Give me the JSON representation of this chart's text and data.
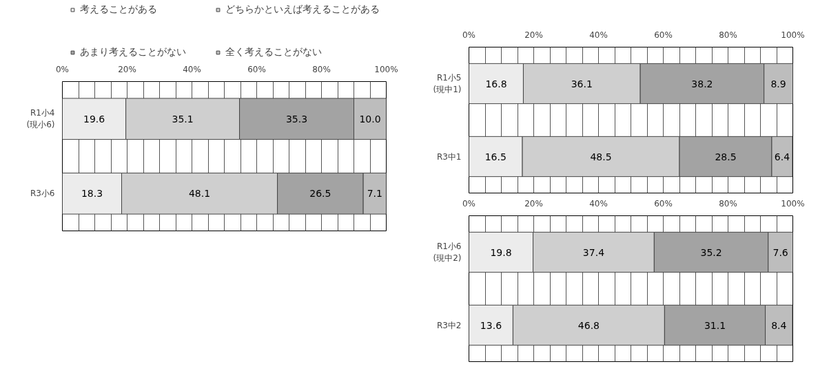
{
  "chart_data": [
    {
      "type": "bar",
      "orientation": "horizontal",
      "stacked": true,
      "data_labels": true,
      "grid": "x",
      "legend": "top",
      "categories": [
        "R1小4\n(現小6)",
        "R3小6"
      ],
      "xlim": [
        0,
        100
      ],
      "xticks": [
        {
          "value": 0,
          "label": "0%"
        },
        {
          "value": 5,
          "label": null
        },
        {
          "value": 10,
          "label": null
        },
        {
          "value": 15,
          "label": null
        },
        {
          "value": 20,
          "label": "20%"
        },
        {
          "value": 25,
          "label": null
        },
        {
          "value": 30,
          "label": null
        },
        {
          "value": 35,
          "label": null
        },
        {
          "value": 40,
          "label": "40%"
        },
        {
          "value": 45,
          "label": null
        },
        {
          "value": 50,
          "label": null
        },
        {
          "value": 55,
          "label": null
        },
        {
          "value": 60,
          "label": "60%"
        },
        {
          "value": 65,
          "label": null
        },
        {
          "value": 70,
          "label": null
        },
        {
          "value": 75,
          "label": null
        },
        {
          "value": 80,
          "label": "80%"
        },
        {
          "value": 85,
          "label": null
        },
        {
          "value": 90,
          "label": null
        },
        {
          "value": 95,
          "label": null
        },
        {
          "value": 100,
          "label": "100%"
        }
      ],
      "series": [
        {
          "name": "考えることがある",
          "color": "#ececec",
          "values": [
            19.6,
            18.3
          ]
        },
        {
          "name": "どちらかといえば考えることがある",
          "color": "#cfcfcf",
          "values": [
            35.1,
            48.1
          ]
        },
        {
          "name": "あまり考えることがない",
          "color": "#a3a3a3",
          "values": [
            35.3,
            26.5
          ]
        },
        {
          "name": "全く考えることがない",
          "color": "#bdbdbd",
          "values": [
            10.0,
            7.1
          ],
          "value_labels": [
            "10.0",
            "7.1"
          ]
        }
      ]
    },
    {
      "type": "bar",
      "orientation": "horizontal",
      "stacked": true,
      "data_labels": true,
      "grid": "x",
      "categories": [
        "R1小5\n(現中1)",
        "R3中1"
      ],
      "xlim": [
        0,
        100
      ],
      "xticks": [
        {
          "value": 0,
          "label": "0%"
        },
        {
          "value": 5,
          "label": null
        },
        {
          "value": 10,
          "label": null
        },
        {
          "value": 15,
          "label": null
        },
        {
          "value": 20,
          "label": "20%"
        },
        {
          "value": 25,
          "label": null
        },
        {
          "value": 30,
          "label": null
        },
        {
          "value": 35,
          "label": null
        },
        {
          "value": 40,
          "label": "40%"
        },
        {
          "value": 45,
          "label": null
        },
        {
          "value": 50,
          "label": null
        },
        {
          "value": 55,
          "label": null
        },
        {
          "value": 60,
          "label": "60%"
        },
        {
          "value": 65,
          "label": null
        },
        {
          "value": 70,
          "label": null
        },
        {
          "value": 75,
          "label": null
        },
        {
          "value": 80,
          "label": "80%"
        },
        {
          "value": 85,
          "label": null
        },
        {
          "value": 90,
          "label": null
        },
        {
          "value": 95,
          "label": null
        },
        {
          "value": 100,
          "label": "100%"
        }
      ],
      "series": [
        {
          "color": "#ececec",
          "values": [
            16.8,
            16.5
          ]
        },
        {
          "color": "#cfcfcf",
          "values": [
            36.1,
            48.5
          ]
        },
        {
          "color": "#a3a3a3",
          "values": [
            38.2,
            28.5
          ]
        },
        {
          "color": "#bdbdbd",
          "values": [
            8.9,
            6.4
          ]
        }
      ]
    },
    {
      "type": "bar",
      "orientation": "horizontal",
      "stacked": true,
      "data_labels": true,
      "grid": "x",
      "categories": [
        "R1小6\n(現中2)",
        "R3中2"
      ],
      "xlim": [
        0,
        100
      ],
      "xticks": [
        {
          "value": 0,
          "label": "0%"
        },
        {
          "value": 5,
          "label": null
        },
        {
          "value": 10,
          "label": null
        },
        {
          "value": 15,
          "label": null
        },
        {
          "value": 20,
          "label": "20%"
        },
        {
          "value": 25,
          "label": null
        },
        {
          "value": 30,
          "label": null
        },
        {
          "value": 35,
          "label": null
        },
        {
          "value": 40,
          "label": "40%"
        },
        {
          "value": 45,
          "label": null
        },
        {
          "value": 50,
          "label": null
        },
        {
          "value": 55,
          "label": null
        },
        {
          "value": 60,
          "label": "60%"
        },
        {
          "value": 65,
          "label": null
        },
        {
          "value": 70,
          "label": null
        },
        {
          "value": 75,
          "label": null
        },
        {
          "value": 80,
          "label": "80%"
        },
        {
          "value": 85,
          "label": null
        },
        {
          "value": 90,
          "label": null
        },
        {
          "value": 95,
          "label": null
        },
        {
          "value": 100,
          "label": "100%"
        }
      ],
      "series": [
        {
          "color": "#ececec",
          "values": [
            19.8,
            13.6
          ]
        },
        {
          "color": "#cfcfcf",
          "values": [
            37.4,
            46.8
          ]
        },
        {
          "color": "#a3a3a3",
          "values": [
            35.2,
            31.1
          ]
        },
        {
          "color": "#bdbdbd",
          "values": [
            7.6,
            8.4
          ]
        }
      ]
    }
  ]
}
